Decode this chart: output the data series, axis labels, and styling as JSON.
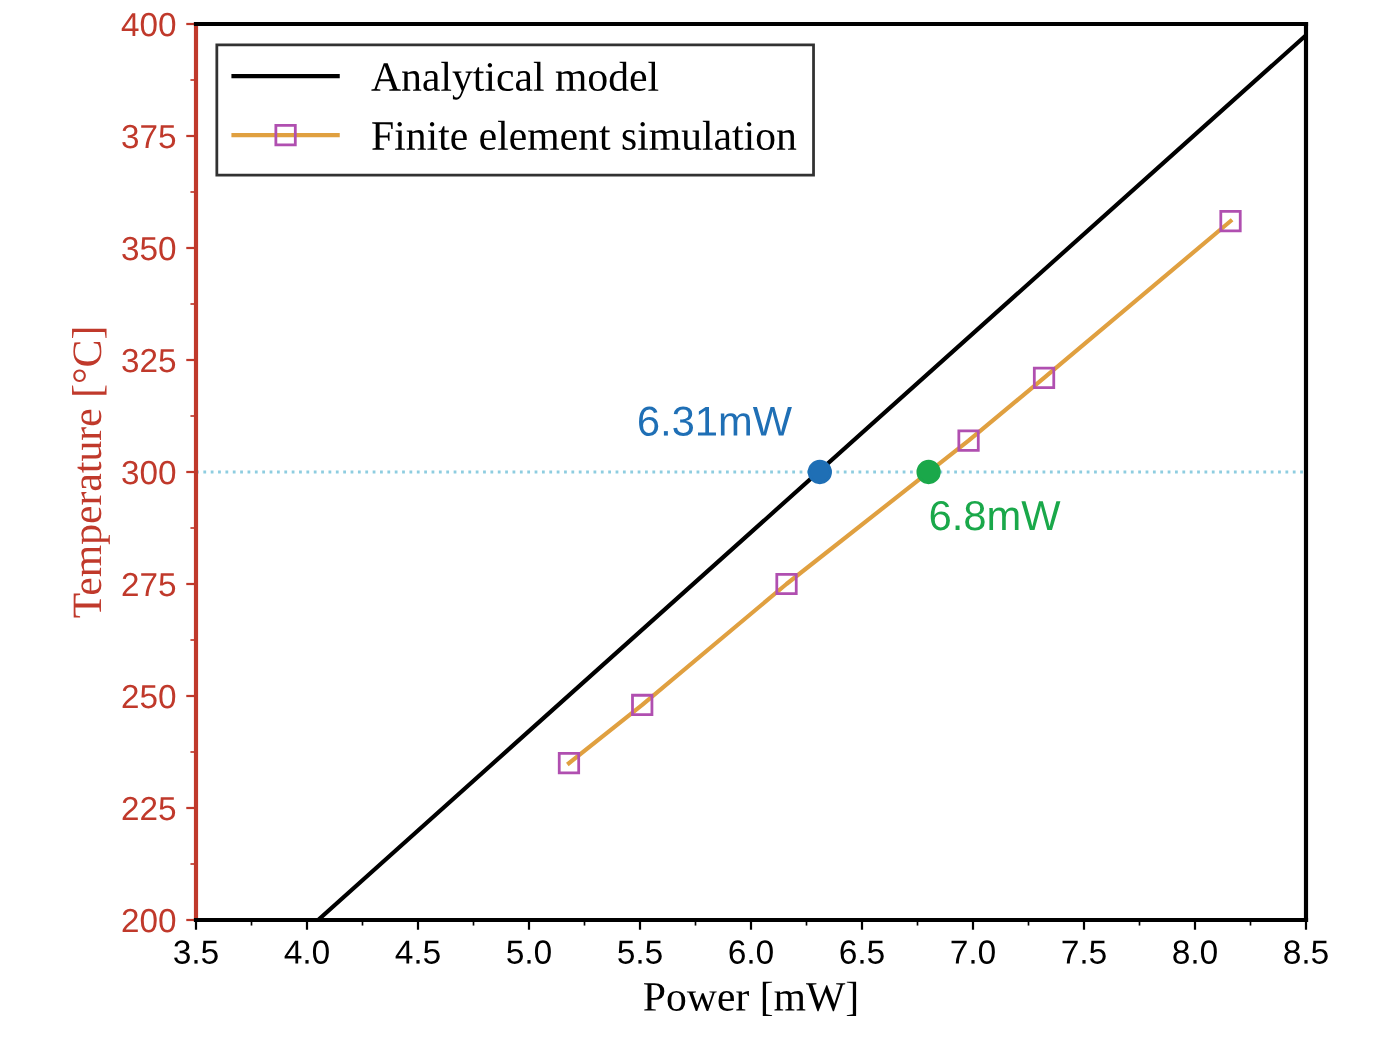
{
  "chart_data": {
    "type": "line",
    "xlabel": "Power [mW]",
    "ylabel": "Temperature [°C]",
    "xlim": [
      3.5,
      8.5
    ],
    "xticks": [
      {
        "value": 3.5,
        "label": "3.5"
      },
      {
        "value": 4.0,
        "label": "4.0"
      },
      {
        "value": 4.5,
        "label": "4.5"
      },
      {
        "value": 5.0,
        "label": "5.0"
      },
      {
        "value": 5.5,
        "label": "5.5"
      },
      {
        "value": 6.0,
        "label": "6.0"
      },
      {
        "value": 6.5,
        "label": "6.5"
      },
      {
        "value": 7.0,
        "label": "7.0"
      },
      {
        "value": 7.5,
        "label": "7.5"
      },
      {
        "value": 8.0,
        "label": "8.0"
      },
      {
        "value": 8.5,
        "label": "8.5"
      }
    ],
    "ylim": [
      200,
      400
    ],
    "yticks": [
      200,
      225,
      250,
      275,
      300,
      325,
      350,
      375,
      400
    ],
    "grid": false,
    "legend": "top left",
    "series": [
      {
        "name": "Analytical model",
        "color": "#000000",
        "marker": "none",
        "x": [
          4.05,
          8.5
        ],
        "values": [
          200,
          397.5
        ]
      },
      {
        "name": "Finite element simulation",
        "color": "#e0a040",
        "marker": "square",
        "x": [
          5.18,
          5.51,
          6.16,
          6.98,
          7.32,
          8.16
        ],
        "values": [
          235,
          248,
          275,
          307,
          321,
          356
        ]
      },
      {
        "type": "scatter",
        "colors": [
          "#1f6fb5",
          "#1aa84a"
        ],
        "x": [
          6.31,
          6.8
        ],
        "values": [
          300,
          300
        ]
      }
    ],
    "ref_lines": [
      {
        "axis": "y",
        "value": 300,
        "color": "#8ecde0",
        "line_style": "dotted"
      }
    ],
    "annotations": [
      {
        "text": "6.31mW",
        "x": 6.31,
        "y": 300
      },
      {
        "text": "6.8mW",
        "x": 6.8,
        "y": 300
      }
    ]
  }
}
